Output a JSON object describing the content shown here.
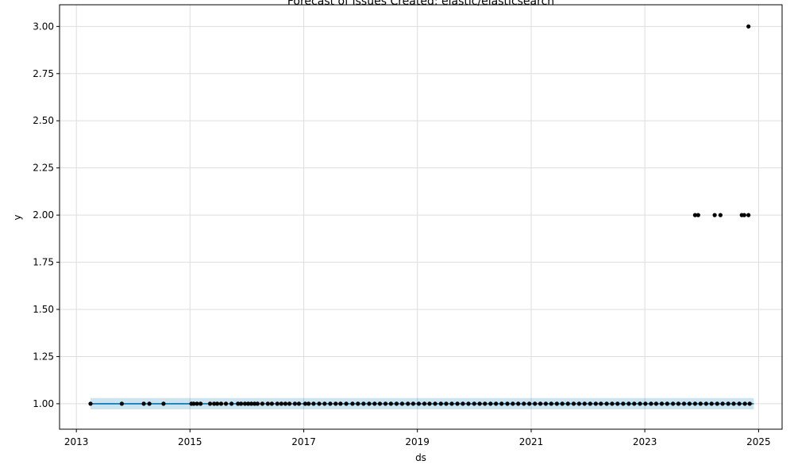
{
  "chart_data": {
    "type": "scatter",
    "title": "Forecast of Issues Created: elastic/elasticsearch",
    "xlabel": "ds",
    "ylabel": "y",
    "xlim": [
      "2012-09-15",
      "2025-06-01"
    ],
    "ylim": [
      0.865,
      3.115
    ],
    "x_ticks": [
      "2013",
      "2015",
      "2017",
      "2019",
      "2021",
      "2023",
      "2025"
    ],
    "y_ticks": [
      "1.00",
      "1.25",
      "1.50",
      "1.75",
      "2.00",
      "2.25",
      "2.50",
      "2.75",
      "3.00"
    ],
    "grid": true,
    "colors": {
      "points": "#000000",
      "forecast_line": "#0072B2",
      "uncertainty_band": "#0072B2",
      "grid": "#dddddd"
    },
    "series": [
      {
        "kind": "observed",
        "points": [
          [
            "2013-04-02",
            1
          ],
          [
            "2013-10-20",
            1
          ],
          [
            "2014-03-10",
            1
          ],
          [
            "2014-04-15",
            1
          ],
          [
            "2014-07-15",
            1
          ],
          [
            "2015-01-10",
            1
          ],
          [
            "2015-01-25",
            1
          ],
          [
            "2015-02-15",
            1
          ],
          [
            "2015-03-10",
            1
          ],
          [
            "2015-05-10",
            1
          ],
          [
            "2015-06-05",
            1
          ],
          [
            "2015-06-25",
            1
          ],
          [
            "2015-07-20",
            1
          ],
          [
            "2015-08-20",
            1
          ],
          [
            "2015-09-25",
            1
          ],
          [
            "2015-11-05",
            1
          ],
          [
            "2015-11-25",
            1
          ],
          [
            "2015-12-20",
            1
          ],
          [
            "2016-01-10",
            1
          ],
          [
            "2016-01-30",
            1
          ],
          [
            "2016-02-20",
            1
          ],
          [
            "2016-03-10",
            1
          ],
          [
            "2016-04-10",
            1
          ],
          [
            "2016-05-15",
            1
          ],
          [
            "2016-06-10",
            1
          ],
          [
            "2016-07-15",
            1
          ],
          [
            "2016-08-10",
            1
          ],
          [
            "2016-09-05",
            1
          ],
          [
            "2016-10-01",
            1
          ],
          [
            "2016-11-05",
            1
          ],
          [
            "2016-12-01",
            1
          ],
          [
            "2017-01-10",
            1
          ],
          [
            "2017-02-01",
            1
          ],
          [
            "2017-03-05",
            1
          ],
          [
            "2017-04-10",
            1
          ],
          [
            "2017-05-15",
            1
          ],
          [
            "2017-06-20",
            1
          ],
          [
            "2017-07-25",
            1
          ],
          [
            "2017-08-25",
            1
          ],
          [
            "2017-10-01",
            1
          ],
          [
            "2017-11-10",
            1
          ],
          [
            "2017-12-15",
            1
          ],
          [
            "2018-01-20",
            1
          ],
          [
            "2018-02-25",
            1
          ],
          [
            "2018-04-01",
            1
          ],
          [
            "2018-05-05",
            1
          ],
          [
            "2018-06-10",
            1
          ],
          [
            "2018-07-15",
            1
          ],
          [
            "2018-08-20",
            1
          ],
          [
            "2018-09-25",
            1
          ],
          [
            "2018-11-01",
            1
          ],
          [
            "2018-12-05",
            1
          ],
          [
            "2019-01-10",
            1
          ],
          [
            "2019-02-15",
            1
          ],
          [
            "2019-03-20",
            1
          ],
          [
            "2019-04-25",
            1
          ],
          [
            "2019-06-01",
            1
          ],
          [
            "2019-07-05",
            1
          ],
          [
            "2019-08-10",
            1
          ],
          [
            "2019-09-15",
            1
          ],
          [
            "2019-10-20",
            1
          ],
          [
            "2019-11-25",
            1
          ],
          [
            "2020-01-01",
            1
          ],
          [
            "2020-02-05",
            1
          ],
          [
            "2020-03-10",
            1
          ],
          [
            "2020-04-15",
            1
          ],
          [
            "2020-05-20",
            1
          ],
          [
            "2020-06-25",
            1
          ],
          [
            "2020-08-01",
            1
          ],
          [
            "2020-09-05",
            1
          ],
          [
            "2020-10-10",
            1
          ],
          [
            "2020-11-15",
            1
          ],
          [
            "2020-12-20",
            1
          ],
          [
            "2021-01-25",
            1
          ],
          [
            "2021-03-01",
            1
          ],
          [
            "2021-04-05",
            1
          ],
          [
            "2021-05-10",
            1
          ],
          [
            "2021-06-15",
            1
          ],
          [
            "2021-07-20",
            1
          ],
          [
            "2021-08-25",
            1
          ],
          [
            "2021-10-01",
            1
          ],
          [
            "2021-11-05",
            1
          ],
          [
            "2021-12-10",
            1
          ],
          [
            "2022-01-15",
            1
          ],
          [
            "2022-02-20",
            1
          ],
          [
            "2022-03-25",
            1
          ],
          [
            "2022-05-01",
            1
          ],
          [
            "2022-06-05",
            1
          ],
          [
            "2022-07-10",
            1
          ],
          [
            "2022-08-15",
            1
          ],
          [
            "2022-09-20",
            1
          ],
          [
            "2022-10-25",
            1
          ],
          [
            "2022-12-01",
            1
          ],
          [
            "2023-01-05",
            1
          ],
          [
            "2023-02-10",
            1
          ],
          [
            "2023-03-15",
            1
          ],
          [
            "2023-04-20",
            1
          ],
          [
            "2023-05-25",
            1
          ],
          [
            "2023-07-01",
            1
          ],
          [
            "2023-08-05",
            1
          ],
          [
            "2023-09-10",
            1
          ],
          [
            "2023-10-15",
            1
          ],
          [
            "2023-11-20",
            1
          ],
          [
            "2023-12-25",
            1
          ],
          [
            "2024-01-30",
            1
          ],
          [
            "2024-03-05",
            1
          ],
          [
            "2024-04-10",
            1
          ],
          [
            "2024-05-15",
            1
          ],
          [
            "2024-06-20",
            1
          ],
          [
            "2024-07-25",
            1
          ],
          [
            "2024-08-30",
            1
          ],
          [
            "2024-10-05",
            1
          ],
          [
            "2024-11-05",
            1
          ],
          [
            "2023-11-20",
            2
          ],
          [
            "2023-12-10",
            2
          ],
          [
            "2024-03-25",
            2
          ],
          [
            "2024-05-01",
            2
          ],
          [
            "2024-09-15",
            2
          ],
          [
            "2024-10-01",
            2
          ],
          [
            "2024-10-28",
            2
          ],
          [
            "2024-10-28",
            3
          ]
        ]
      },
      {
        "kind": "forecast",
        "x": [
          "2013-04-02",
          "2024-12-01"
        ],
        "y": [
          1.0,
          1.0
        ],
        "y_lower": [
          0.97,
          0.97
        ],
        "y_upper": [
          1.03,
          1.03
        ]
      }
    ]
  }
}
